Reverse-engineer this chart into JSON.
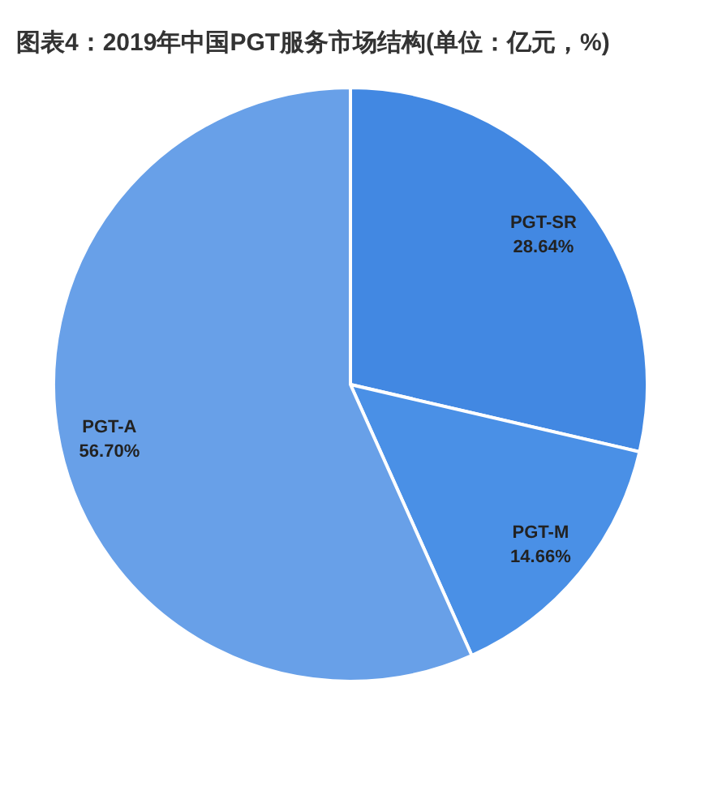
{
  "chart_data": {
    "type": "pie",
    "title": "图表4：2019年中国PGT服务市场结构(单位：亿元，%)",
    "categories": [
      "PGT-SR",
      "PGT-M",
      "PGT-A"
    ],
    "values": [
      28.64,
      14.66,
      56.7
    ],
    "colors": [
      "#4288e2",
      "#4a90e6",
      "#68a0e8"
    ],
    "value_labels": [
      "28.64%",
      "14.66%",
      "56.70%"
    ]
  }
}
